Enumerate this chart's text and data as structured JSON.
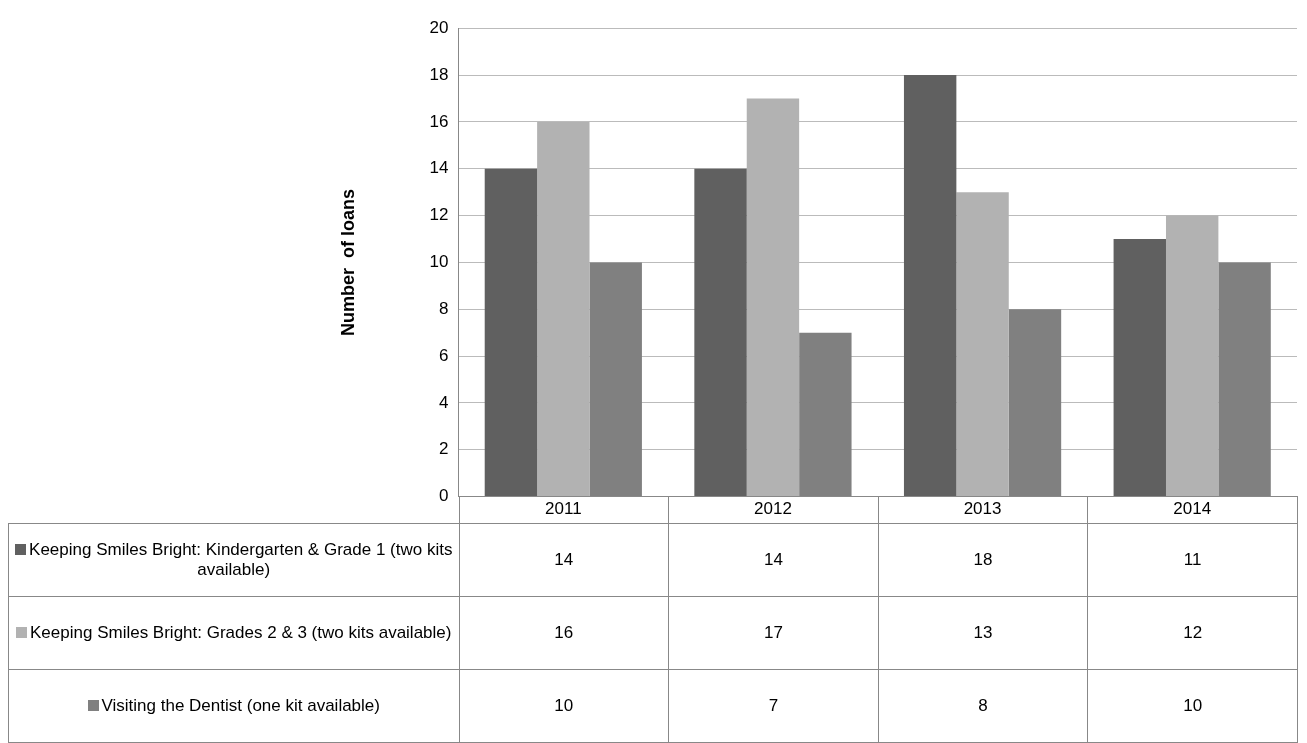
{
  "chart_data": {
    "type": "bar",
    "ylabel": "Number  of loans",
    "categories": [
      "2011",
      "2012",
      "2013",
      "2014"
    ],
    "series": [
      {
        "name": "Keeping Smiles Bright: Kindergarten & Grade 1 (two kits available)",
        "color": "#606060",
        "values": [
          14,
          14,
          18,
          11
        ]
      },
      {
        "name": "Keeping Smiles Bright: Grades 2 & 3 (two kits available)",
        "color": "#b2b2b2",
        "values": [
          16,
          17,
          13,
          12
        ]
      },
      {
        "name": "Visiting the Dentist (one kit available)",
        "color": "#808080",
        "values": [
          10,
          7,
          8,
          10
        ]
      }
    ],
    "ylim": [
      0,
      20
    ],
    "yticks": [
      0,
      2,
      4,
      6,
      8,
      10,
      12,
      14,
      16,
      18,
      20
    ],
    "grid": "y",
    "legend": "bottom",
    "data_labels": true
  }
}
